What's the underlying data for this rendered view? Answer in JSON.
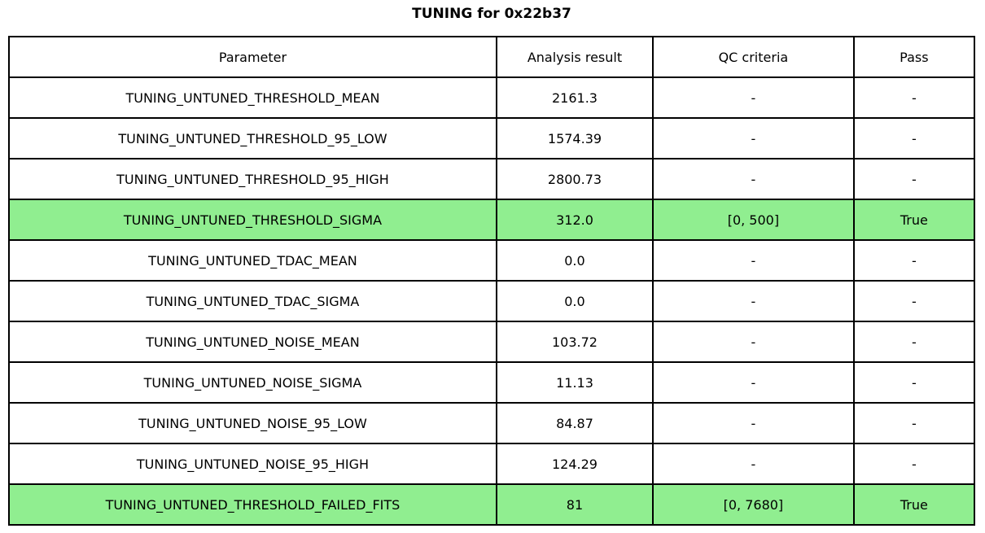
{
  "title": "TUNING for 0x22b37",
  "colors": {
    "highlight_green": "#90EE90",
    "border": "#000000",
    "background": "#ffffff"
  },
  "chart_data": {
    "type": "table",
    "title": "TUNING for 0x22b37",
    "columns": [
      "Parameter",
      "Analysis result",
      "QC criteria",
      "Pass"
    ],
    "rows": [
      {
        "parameter": "TUNING_UNTUNED_THRESHOLD_MEAN",
        "analysis_result": "2161.3",
        "qc_criteria": "-",
        "pass": "-",
        "highlighted": false
      },
      {
        "parameter": "TUNING_UNTUNED_THRESHOLD_95_LOW",
        "analysis_result": "1574.39",
        "qc_criteria": "-",
        "pass": "-",
        "highlighted": false
      },
      {
        "parameter": "TUNING_UNTUNED_THRESHOLD_95_HIGH",
        "analysis_result": "2800.73",
        "qc_criteria": "-",
        "pass": "-",
        "highlighted": false
      },
      {
        "parameter": "TUNING_UNTUNED_THRESHOLD_SIGMA",
        "analysis_result": "312.0",
        "qc_criteria": "[0, 500]",
        "pass": "True",
        "highlighted": true
      },
      {
        "parameter": "TUNING_UNTUNED_TDAC_MEAN",
        "analysis_result": "0.0",
        "qc_criteria": "-",
        "pass": "-",
        "highlighted": false
      },
      {
        "parameter": "TUNING_UNTUNED_TDAC_SIGMA",
        "analysis_result": "0.0",
        "qc_criteria": "-",
        "pass": "-",
        "highlighted": false
      },
      {
        "parameter": "TUNING_UNTUNED_NOISE_MEAN",
        "analysis_result": "103.72",
        "qc_criteria": "-",
        "pass": "-",
        "highlighted": false
      },
      {
        "parameter": "TUNING_UNTUNED_NOISE_SIGMA",
        "analysis_result": "11.13",
        "qc_criteria": "-",
        "pass": "-",
        "highlighted": false
      },
      {
        "parameter": "TUNING_UNTUNED_NOISE_95_LOW",
        "analysis_result": "84.87",
        "qc_criteria": "-",
        "pass": "-",
        "highlighted": false
      },
      {
        "parameter": "TUNING_UNTUNED_NOISE_95_HIGH",
        "analysis_result": "124.29",
        "qc_criteria": "-",
        "pass": "-",
        "highlighted": false
      },
      {
        "parameter": "TUNING_UNTUNED_THRESHOLD_FAILED_FITS",
        "analysis_result": "81",
        "qc_criteria": "[0, 7680]",
        "pass": "True",
        "highlighted": true
      }
    ]
  }
}
